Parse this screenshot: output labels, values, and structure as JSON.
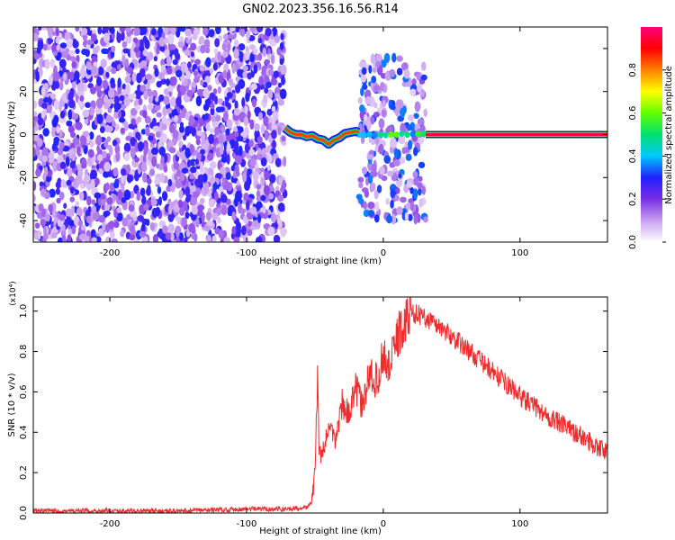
{
  "title": "GN02.2023.356.16.56.R14",
  "chart_data": [
    {
      "type": "heatmap",
      "xlabel": "Height of straight line (km)",
      "ylabel": "Frequency (Hz)",
      "xlim": [
        -256,
        164
      ],
      "ylim": [
        -50,
        50
      ],
      "x_ticks": [
        -200,
        -100,
        0,
        100
      ],
      "y_ticks": [
        -40,
        -20,
        0,
        20,
        40
      ],
      "colorbar": {
        "label": "Normalized spectral amplitude",
        "range": [
          0,
          1
        ],
        "ticks": [
          0.0,
          0.2,
          0.4,
          0.6,
          0.8
        ],
        "tick_labels": [
          "0.0",
          "0.2",
          "0.4",
          "0.6",
          "0.8"
        ],
        "colors": [
          "#ffffff",
          "#c8a0f0",
          "#7a2ee6",
          "#2020ff",
          "#00c8ff",
          "#00e070",
          "#60ff00",
          "#ffff00",
          "#ff8000",
          "#ff0000",
          "#ff0080"
        ]
      },
      "regions": [
        {
          "x_range": [
            -256,
            -72
          ],
          "y_range": [
            -50,
            50
          ],
          "level": 0.25,
          "description": "broadband noise"
        },
        {
          "x_range": [
            -72,
            -18
          ],
          "y_range": [
            -6,
            6
          ],
          "level": 0.85,
          "description": "meandering signal near 0 Hz"
        },
        {
          "x_range": [
            -18,
            31
          ],
          "y_range": [
            -40,
            36
          ],
          "level": 0.3,
          "description": "noise band with signal at 0 Hz"
        },
        {
          "x_range": [
            31,
            164
          ],
          "y_range": [
            -1,
            1
          ],
          "level": 0.95,
          "description": "steady carrier at 0 Hz"
        }
      ],
      "signal_track": {
        "x": [
          -72,
          -68,
          -64,
          -60,
          -56,
          -52,
          -48,
          -44,
          -40,
          -36,
          -32,
          -28,
          -24,
          -20,
          -18
        ],
        "y": [
          3,
          1,
          0,
          0,
          -1,
          -0.5,
          -2,
          -2.5,
          -4.5,
          -2.5,
          -1.5,
          0.5,
          1,
          1.5,
          1
        ]
      }
    },
    {
      "type": "line",
      "xlabel": "Height of straight line (km)",
      "ylabel": "SNR (10 * v/v)",
      "y_multiplier": "(x10⁴)",
      "xlim": [
        -256,
        164
      ],
      "ylim": [
        0,
        1.07
      ],
      "x_ticks": [
        -200,
        -100,
        0,
        100
      ],
      "y_ticks": [
        0.0,
        0.2,
        0.4,
        0.6,
        0.8,
        1.0
      ],
      "y_tick_labels": [
        "0.0",
        "0.2",
        "0.4",
        "0.6",
        "0.8",
        "1.0"
      ],
      "series": [
        {
          "color": "#ee2c2c",
          "x": [
            -256,
            -200,
            -150,
            -100,
            -70,
            -55,
            -52,
            -50,
            -48,
            -47,
            -45,
            -40,
            -35,
            -30,
            -25,
            -20,
            -15,
            -10,
            -5,
            0,
            5,
            10,
            15,
            20,
            30,
            40,
            60,
            80,
            100,
            120,
            140,
            164
          ],
          "y": [
            0.01,
            0.01,
            0.01,
            0.02,
            0.02,
            0.03,
            0.06,
            0.2,
            0.7,
            0.3,
            0.28,
            0.42,
            0.36,
            0.55,
            0.48,
            0.62,
            0.52,
            0.7,
            0.65,
            0.78,
            0.72,
            0.88,
            0.92,
            1.0,
            0.97,
            0.93,
            0.82,
            0.7,
            0.58,
            0.48,
            0.4,
            0.3
          ]
        }
      ]
    }
  ]
}
